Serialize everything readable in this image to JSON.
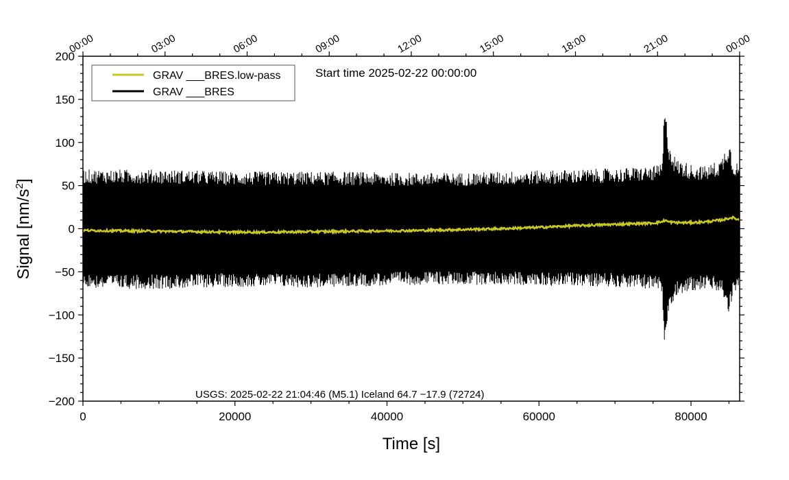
{
  "chart_data": {
    "type": "line",
    "start_time": "Start time 2025-02-22 00:00:00",
    "annotation": "USGS: 2025-02-22 21:04:46 (M5.1) Iceland 64.7 −17.9 (72724)",
    "xlabel": "Time [s]",
    "ylabel_main": "Signal [nm/s",
    "ylabel_sup": "2",
    "ylabel_end": "]",
    "xlim": [
      0,
      86400
    ],
    "ylim": [
      -200,
      200
    ],
    "x_ticks": [
      {
        "value": 0,
        "label": "0"
      },
      {
        "value": 20000,
        "label": "20000"
      },
      {
        "value": 40000,
        "label": "40000"
      },
      {
        "value": 60000,
        "label": "60000"
      },
      {
        "value": 80000,
        "label": "80000"
      }
    ],
    "y_ticks": [
      {
        "value": 200,
        "label": "200"
      },
      {
        "value": 150,
        "label": "150"
      },
      {
        "value": 100,
        "label": "100"
      },
      {
        "value": 50,
        "label": "50"
      },
      {
        "value": 0,
        "label": "0"
      },
      {
        "value": -50,
        "label": "−50"
      },
      {
        "value": -100,
        "label": "−100"
      },
      {
        "value": -150,
        "label": "−150"
      },
      {
        "value": -200,
        "label": "−200"
      }
    ],
    "time_ticks": [
      {
        "value": 0,
        "label": "00:00"
      },
      {
        "value": 10800,
        "label": "03:00"
      },
      {
        "value": 21600,
        "label": "06:00"
      },
      {
        "value": 32400,
        "label": "09:00"
      },
      {
        "value": 43200,
        "label": "12:00"
      },
      {
        "value": 54000,
        "label": "15:00"
      },
      {
        "value": 64800,
        "label": "18:00"
      },
      {
        "value": 75600,
        "label": "21:00"
      },
      {
        "value": 86400,
        "label": "00:00"
      }
    ],
    "legend_position": "top-left",
    "series": [
      {
        "name": "GRAV ___BRES.low-pass",
        "color": "#c8c820",
        "x": [
          0,
          5000,
          10000,
          15000,
          20000,
          25000,
          30000,
          35000,
          40000,
          45000,
          50000,
          55000,
          60000,
          65000,
          70000,
          75000,
          76200,
          76600,
          77000,
          78000,
          80000,
          82000,
          84000,
          85000,
          85400,
          86400
        ],
        "y": [
          -2,
          -2.5,
          -3,
          -3.5,
          -4,
          -4,
          -3.5,
          -3,
          -2.5,
          -2,
          -1,
          0,
          1.5,
          3.5,
          5,
          6.5,
          8,
          10,
          8,
          7,
          7,
          8,
          10,
          12,
          13,
          10
        ]
      },
      {
        "name": "GRAV ___BRES",
        "color": "#000000",
        "x": [
          0,
          5000,
          10000,
          15000,
          20000,
          25000,
          30000,
          35000,
          40000,
          45000,
          50000,
          55000,
          60000,
          65000,
          70000,
          75000,
          76200,
          76500,
          76800,
          77200,
          78000,
          80000,
          82000,
          84000,
          85000,
          85500,
          86400
        ],
        "envelope_max": [
          55,
          55,
          55,
          54,
          53,
          53,
          53,
          53,
          52,
          52,
          52,
          53,
          54,
          55,
          56,
          58,
          60,
          115,
          100,
          80,
          65,
          60,
          58,
          65,
          85,
          65,
          60
        ],
        "envelope_min": [
          -55,
          -56,
          -56,
          -55,
          -54,
          -54,
          -55,
          -54,
          -53,
          -52,
          -52,
          -52,
          -53,
          -53,
          -54,
          -56,
          -60,
          -110,
          -95,
          -75,
          -62,
          -58,
          -56,
          -60,
          -80,
          -62,
          -58
        ]
      }
    ]
  }
}
